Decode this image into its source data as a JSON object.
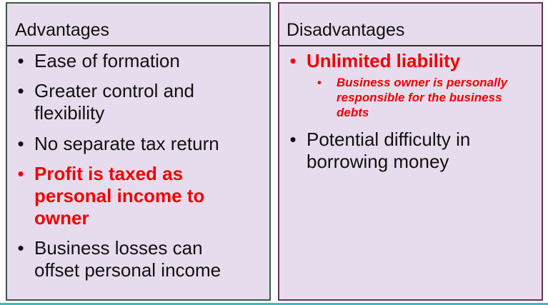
{
  "advantages": {
    "header": "Advantages",
    "items": [
      {
        "text": "Ease of formation",
        "style": "normal"
      },
      {
        "text": "Greater control and flexibility",
        "style": "normal"
      },
      {
        "text": "No separate tax return",
        "style": "normal"
      },
      {
        "text": "Profit is taxed as personal income to owner",
        "style": "highlight"
      },
      {
        "text": "Business losses can offset personal income",
        "style": "normal"
      }
    ]
  },
  "disadvantages": {
    "header": "Disadvantages",
    "items": [
      {
        "text": "Unlimited liability",
        "style": "highlight",
        "sub_items": [
          "Business owner is personally responsible for the business debts"
        ]
      },
      {
        "text": "Potential difficulty in borrowing money",
        "style": "normal"
      }
    ]
  },
  "bullet_glyph": "•",
  "colors": {
    "panel_background": "#e6dced",
    "highlight": "#ee0000",
    "left_border": "#3d5a3d",
    "right_border": "#6a2f58",
    "bottom_line": "#3fb8c9"
  }
}
